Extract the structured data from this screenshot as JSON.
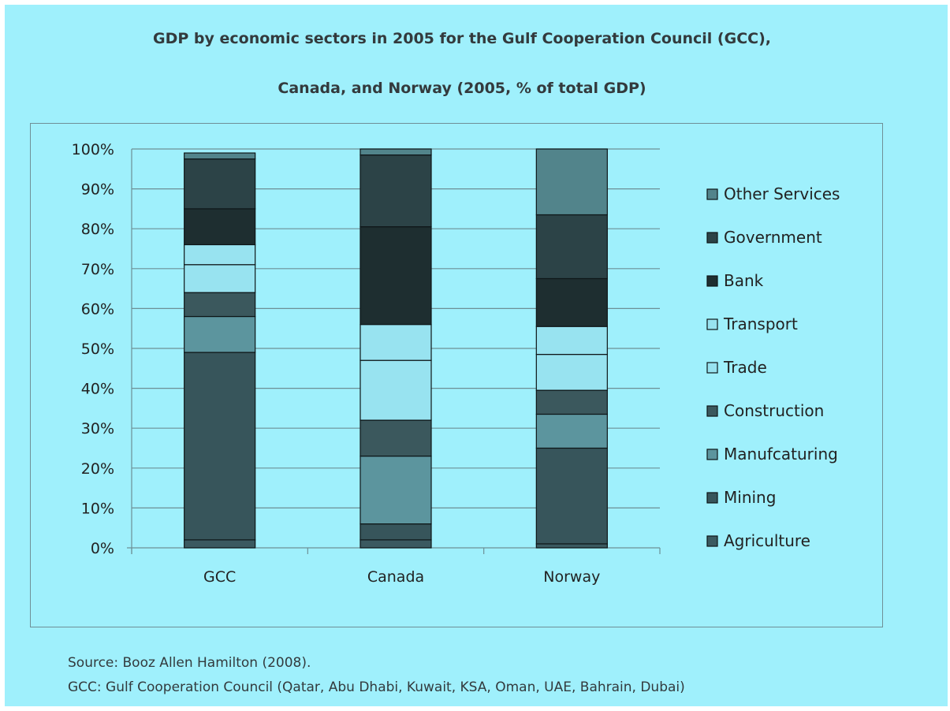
{
  "title_line1": "GDP by economic sectors in 2005 for the Gulf Cooperation Council (GCC),",
  "title_line2": "Canada, and Norway (2005, % of total GDP)",
  "source_line1": "Source: Booz Allen Hamilton (2008).",
  "source_line2": "GCC: Gulf Cooperation Council (Qatar, Abu Dhabi, Kuwait, KSA, Oman, UAE, Bahrain, Dubai)",
  "chart_data": {
    "type": "bar",
    "stacked": true,
    "categories": [
      "GCC",
      "Canada",
      "Norway"
    ],
    "ylim": [
      0,
      100
    ],
    "yticks": [
      "0%",
      "10%",
      "20%",
      "30%",
      "40%",
      "50%",
      "60%",
      "70%",
      "80%",
      "90%",
      "100%"
    ],
    "grid": true,
    "legend_placement": "right",
    "series": [
      {
        "name": "Agriculture",
        "color": "#3b5a60",
        "values": [
          2,
          2,
          1
        ]
      },
      {
        "name": "Mining",
        "color": "#37555b",
        "values": [
          47,
          4,
          24
        ]
      },
      {
        "name": "Manufcaturing",
        "color": "#5c959e",
        "values": [
          9,
          17,
          8.5
        ]
      },
      {
        "name": "Construction",
        "color": "#3b585d",
        "values": [
          6,
          9,
          6
        ]
      },
      {
        "name": "Trade",
        "color": "#98e3f0",
        "values": [
          7,
          15,
          9
        ]
      },
      {
        "name": "Transport",
        "color": "#98e3f0",
        "values": [
          5,
          9,
          7
        ]
      },
      {
        "name": "Bank",
        "color": "#1e2e30",
        "values": [
          9,
          24.5,
          12
        ]
      },
      {
        "name": "Government",
        "color": "#2c4347",
        "values": [
          12.5,
          18,
          16
        ]
      },
      {
        "name": "Other Services",
        "color": "#52848b",
        "values": [
          1.5,
          1.5,
          16.5
        ]
      }
    ],
    "legend_order": [
      "Other Services",
      "Government",
      "Bank",
      "Transport",
      "Trade",
      "Construction",
      "Manufcaturing",
      "Mining",
      "Agriculture"
    ]
  }
}
